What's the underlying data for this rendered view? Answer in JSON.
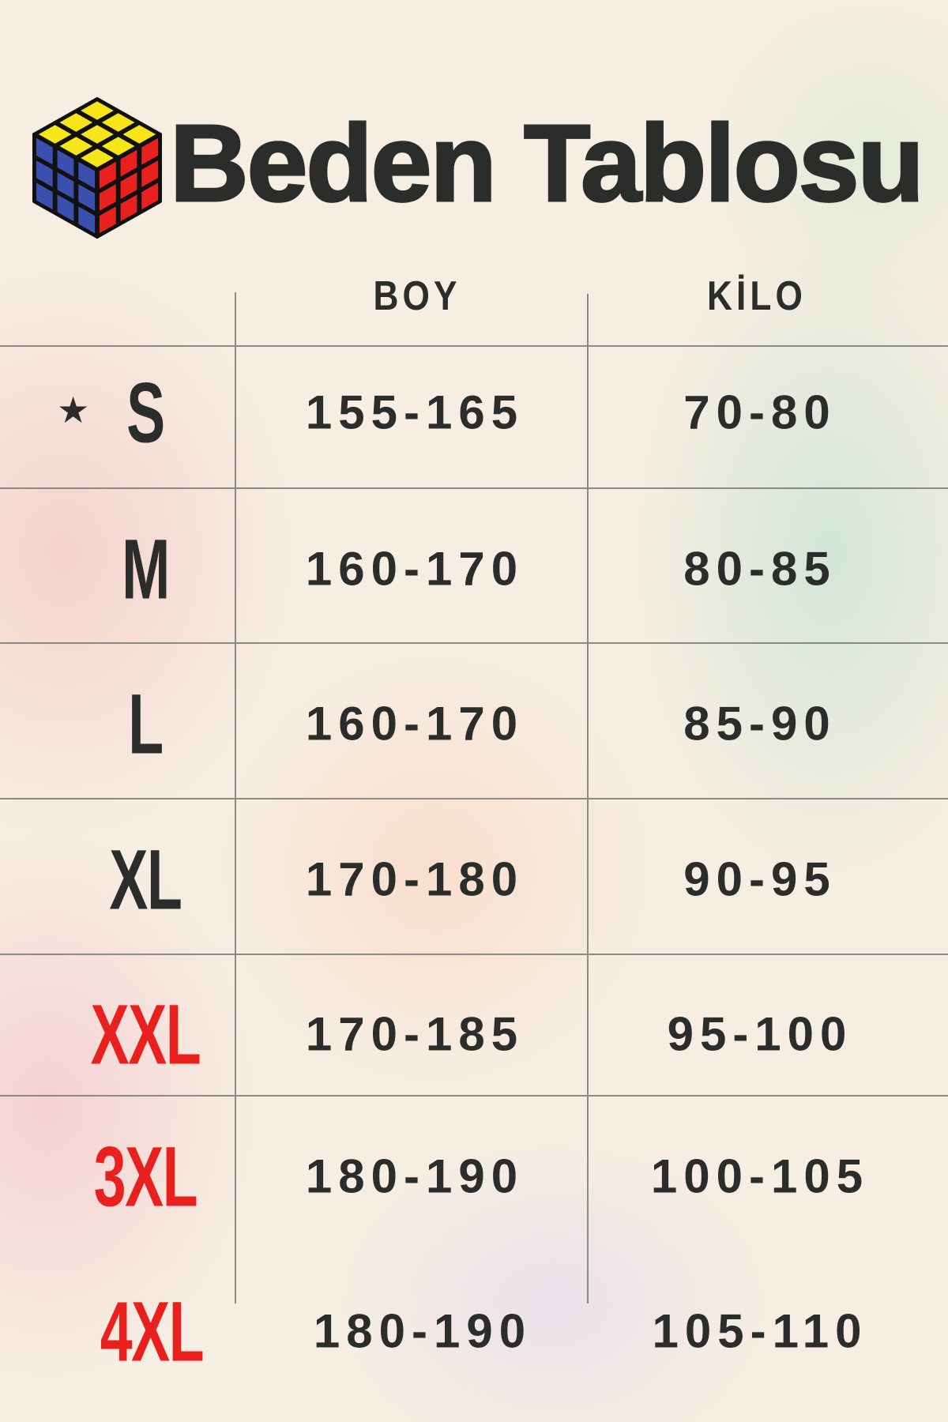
{
  "title": "Beden Tablosu",
  "logo": "rubiks-cube-icon",
  "colors": {
    "text": "#2b2d2b",
    "highlight": "#e8201e",
    "cube_yellow": "#f7e51a",
    "cube_blue": "#3a4fae",
    "cube_red": "#e8201e"
  },
  "columns": [
    "BOY",
    "KİLO"
  ],
  "rows": [
    {
      "size": "S",
      "boy": "155-165",
      "kilo": "70-80",
      "starred": true,
      "highlight": false
    },
    {
      "size": "M",
      "boy": "160-170",
      "kilo": "80-85",
      "highlight": false
    },
    {
      "size": "L",
      "boy": "160-170",
      "kilo": "85-90",
      "highlight": false
    },
    {
      "size": "XL",
      "boy": "170-180",
      "kilo": "90-95",
      "highlight": false
    },
    {
      "size": "XXL",
      "boy": "170-185",
      "kilo": "95-100",
      "highlight": true
    },
    {
      "size": "3XL",
      "boy": "180-190",
      "kilo": "100-105",
      "highlight": true
    },
    {
      "size": "4XL",
      "boy": "180-190",
      "kilo": "105-110",
      "highlight": true
    }
  ]
}
